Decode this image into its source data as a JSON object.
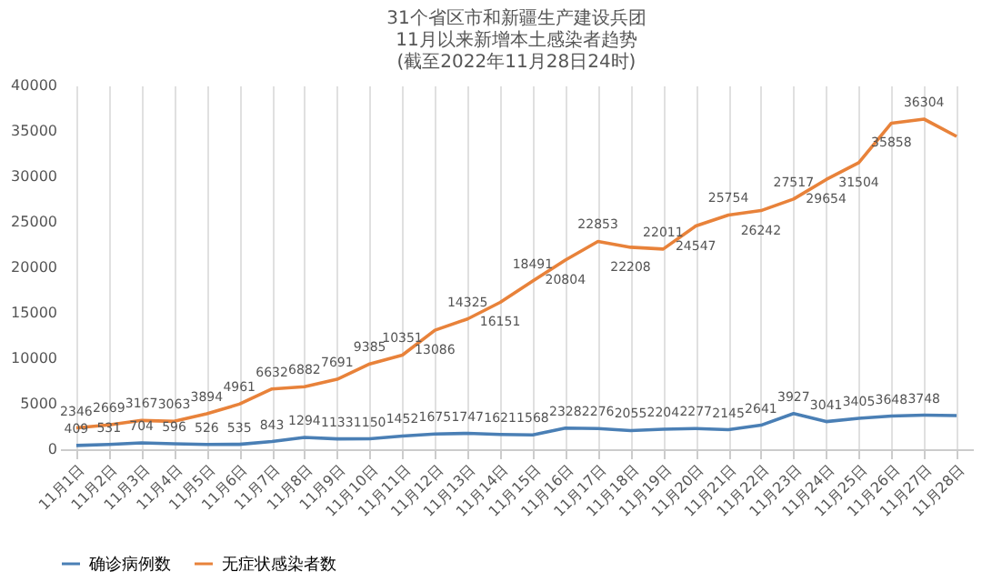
{
  "chart_data": {
    "type": "line",
    "title": [
      "31个省区市和新疆生产建设兵团",
      "11月以来新增本土感染者趋势",
      "(截至2022年11月28日24时)"
    ],
    "categories": [
      "11月1日",
      "11月2日",
      "11月3日",
      "11月4日",
      "11月5日",
      "11月6日",
      "11月7日",
      "11月8日",
      "11月9日",
      "11月10日",
      "11月11日",
      "11月12日",
      "11月13日",
      "11月14日",
      "11月15日",
      "11月16日",
      "11月17日",
      "11月18日",
      "11月19日",
      "11月20日",
      "11月21日",
      "11月22日",
      "11月23日",
      "11月24日",
      "11月25日",
      "11月26日",
      "11月27日",
      "11月28日"
    ],
    "series": [
      {
        "name": "确诊病例数",
        "color": "#4a7fb5",
        "values": [
          409,
          531,
          704,
          596,
          526,
          535,
          843,
          1294,
          1133,
          1150,
          1452,
          1675,
          1747,
          1621,
          1568,
          2328,
          2276,
          2055,
          2204,
          2277,
          2145,
          2641,
          3927,
          3041,
          3405,
          3648,
          3748,
          3700
        ],
        "value_labels": [
          "409",
          "531",
          "704",
          "596",
          "526",
          "535",
          "843",
          "1294",
          "1133",
          "1150",
          "1452",
          "1675",
          "1747",
          "1621",
          "1568",
          "2328",
          "2276",
          "2055",
          "2204",
          "2277",
          "2145",
          "2641",
          "3927",
          "3041",
          "3405",
          "3648",
          "3748",
          null
        ]
      },
      {
        "name": "无症状感染者数",
        "color": "#e8823a",
        "values": [
          2346,
          2669,
          3167,
          3063,
          3894,
          4961,
          6632,
          6882,
          7691,
          9385,
          10351,
          13086,
          14325,
          16151,
          18491,
          20804,
          22853,
          22208,
          22011,
          24547,
          25754,
          26242,
          27517,
          29654,
          31504,
          35858,
          36304,
          34400
        ],
        "value_labels": [
          "2346",
          "2669",
          "3167",
          "3063",
          "3894",
          "4961",
          "6632",
          "6882",
          "7691",
          "9385",
          "10351",
          "13086",
          "14325",
          "16151",
          "18491",
          "20804",
          "22853",
          "22208",
          "22011",
          "24547",
          "25754",
          "26242",
          "27517",
          "29654",
          "31504",
          "35858",
          "36304",
          null
        ]
      }
    ],
    "ylim": [
      0,
      40000
    ],
    "yticks": [
      0,
      5000,
      10000,
      15000,
      20000,
      25000,
      30000,
      35000,
      40000
    ],
    "grid": "x",
    "legend": "bottom",
    "marker": "none",
    "line_style": "solid"
  }
}
